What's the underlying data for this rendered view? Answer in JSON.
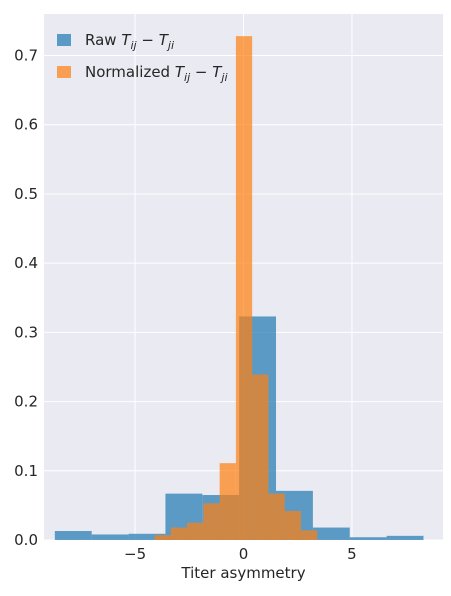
{
  "chart_data": {
    "type": "bar",
    "title": "",
    "xlabel": "Titer asymmetry",
    "ylabel": "",
    "xlim": [
      -9.2,
      9.2
    ],
    "ylim": [
      0,
      0.76
    ],
    "xticks": [
      -5,
      0,
      5
    ],
    "xtick_labels": [
      "−5",
      "0",
      "5"
    ],
    "yticks": [
      0.0,
      0.1,
      0.2,
      0.3,
      0.4,
      0.5,
      0.6,
      0.7
    ],
    "ytick_labels": [
      "0.0",
      "0.1",
      "0.2",
      "0.3",
      "0.4",
      "0.5",
      "0.6",
      "0.7"
    ],
    "grid": true,
    "legend_position": "top-left",
    "colors": {
      "raw": "#1f77b4",
      "normalized": "#ff7f0e",
      "background": "#eaeaf2",
      "grid": "#ffffff"
    },
    "series": [
      {
        "key": "raw",
        "name": "Raw T_ij − T_ji",
        "legend_prefix": "Raw",
        "opacity": 0.7,
        "bins": [
          {
            "x0": -8.7,
            "x1": -7.0,
            "value": 0.013
          },
          {
            "x0": -7.0,
            "x1": -5.3,
            "value": 0.008
          },
          {
            "x0": -5.3,
            "x1": -3.6,
            "value": 0.009
          },
          {
            "x0": -3.6,
            "x1": -1.9,
            "value": 0.067
          },
          {
            "x0": -1.9,
            "x1": -0.2,
            "value": 0.065
          },
          {
            "x0": -0.2,
            "x1": 1.5,
            "value": 0.323
          },
          {
            "x0": 1.5,
            "x1": 3.2,
            "value": 0.071
          },
          {
            "x0": 3.2,
            "x1": 4.9,
            "value": 0.018
          },
          {
            "x0": 4.9,
            "x1": 6.6,
            "value": 0.004
          },
          {
            "x0": 6.6,
            "x1": 8.3,
            "value": 0.006
          }
        ]
      },
      {
        "key": "normalized",
        "name": "Normalized T_ij − T_ji",
        "legend_prefix": "Normalized",
        "opacity": 0.7,
        "bins": [
          {
            "x0": -4.1,
            "x1": -3.35,
            "value": 0.007
          },
          {
            "x0": -3.35,
            "x1": -2.6,
            "value": 0.018
          },
          {
            "x0": -2.6,
            "x1": -1.85,
            "value": 0.025
          },
          {
            "x0": -1.85,
            "x1": -1.1,
            "value": 0.053
          },
          {
            "x0": -1.1,
            "x1": -0.35,
            "value": 0.111
          },
          {
            "x0": -0.35,
            "x1": 0.4,
            "value": 0.728
          },
          {
            "x0": 0.4,
            "x1": 1.15,
            "value": 0.239
          },
          {
            "x0": 1.15,
            "x1": 1.9,
            "value": 0.067
          },
          {
            "x0": 1.9,
            "x1": 2.65,
            "value": 0.042
          },
          {
            "x0": 2.65,
            "x1": 3.4,
            "value": 0.014
          }
        ]
      }
    ]
  }
}
